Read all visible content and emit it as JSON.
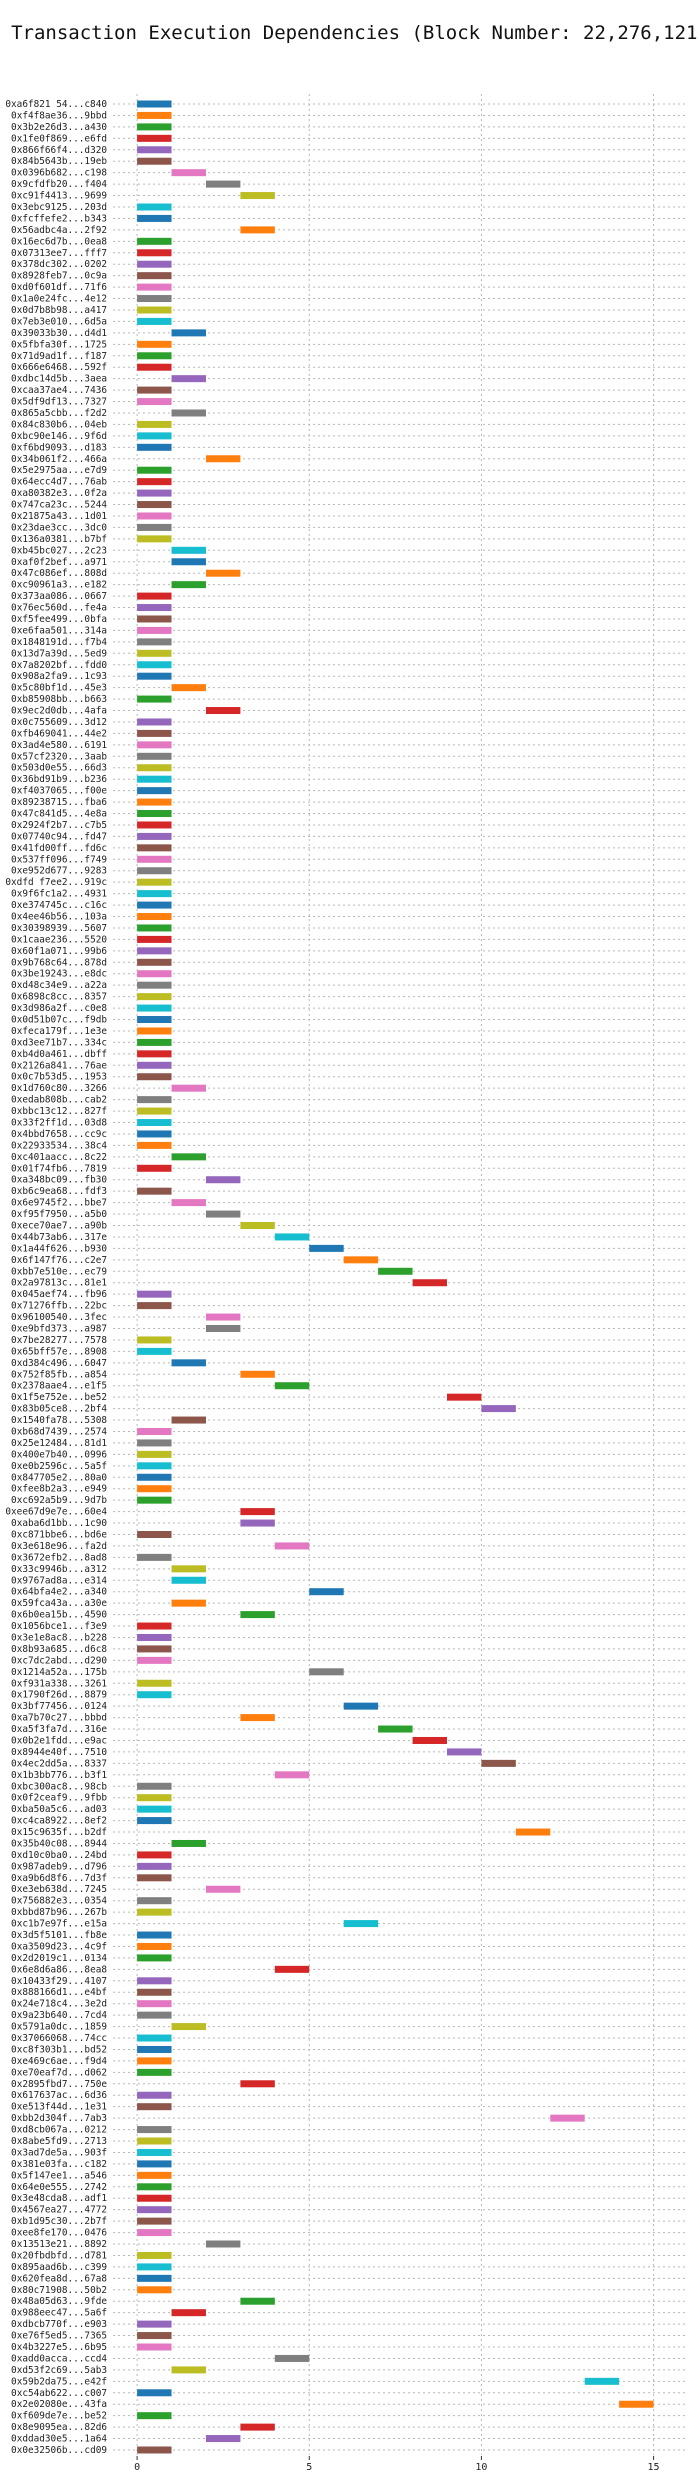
{
  "chart_data": {
    "type": "gantt",
    "title": "Transaction Execution Dependencies (Block Number: 22,276,121)",
    "xlabel": "",
    "ylabel": "",
    "xlim": [
      -0.7,
      16
    ],
    "grid": true,
    "xticks": [
      0,
      5,
      10,
      15
    ],
    "palette": [
      "#1f77b4",
      "#ff7f0e",
      "#2ca02c",
      "#d62728",
      "#9467bd",
      "#8c564b",
      "#e377c2",
      "#7f7f7f",
      "#bcbd22",
      "#17becf"
    ],
    "transactions": [
      {
        "tx": "0xa6f821 54...c840",
        "start": 0,
        "dur": 1
      },
      {
        "tx": "0xf4f8ae36...9bbd",
        "start": 0,
        "dur": 1
      },
      {
        "tx": "0x3b2e26d3...a430",
        "start": 0,
        "dur": 1
      },
      {
        "tx": "0x1fe0f869...e6fd",
        "start": 0,
        "dur": 1
      },
      {
        "tx": "0x866f66f4...d320",
        "start": 0,
        "dur": 1
      },
      {
        "tx": "0x84b5643b...19eb",
        "start": 0,
        "dur": 1
      },
      {
        "tx": "0x0396b682...c198",
        "start": 1,
        "dur": 1
      },
      {
        "tx": "0x9cfdfb20...f404",
        "start": 2,
        "dur": 1
      },
      {
        "tx": "0xc91f4413...9699",
        "start": 3,
        "dur": 1
      },
      {
        "tx": "0x3ebc9125...203d",
        "start": 0,
        "dur": 1
      },
      {
        "tx": "0xfcffefe2...b343",
        "start": 0,
        "dur": 1
      },
      {
        "tx": "0x56adbc4a...2f92",
        "start": 3,
        "dur": 1
      },
      {
        "tx": "0x16ec6d7b...0ea8",
        "start": 0,
        "dur": 1
      },
      {
        "tx": "0x07313ee7...fff7",
        "start": 0,
        "dur": 1
      },
      {
        "tx": "0x378dc302...0202",
        "start": 0,
        "dur": 1
      },
      {
        "tx": "0x8928feb7...0c9a",
        "start": 0,
        "dur": 1
      },
      {
        "tx": "0xd0f601df...71f6",
        "start": 0,
        "dur": 1
      },
      {
        "tx": "0x1a0e24fc...4e12",
        "start": 0,
        "dur": 1
      },
      {
        "tx": "0x0d7b8b98...a417",
        "start": 0,
        "dur": 1
      },
      {
        "tx": "0x7eb3e010...6d5a",
        "start": 0,
        "dur": 1
      },
      {
        "tx": "0x39033b30...d4d1",
        "start": 1,
        "dur": 1
      },
      {
        "tx": "0x5fbfa30f...1725",
        "start": 0,
        "dur": 1
      },
      {
        "tx": "0x71d9ad1f...f187",
        "start": 0,
        "dur": 1
      },
      {
        "tx": "0x666e6468...592f",
        "start": 0,
        "dur": 1
      },
      {
        "tx": "0xdbc14d5b...3aea",
        "start": 1,
        "dur": 1
      },
      {
        "tx": "0xcaa37ae4...7436",
        "start": 0,
        "dur": 1
      },
      {
        "tx": "0x5df9df13...7327",
        "start": 0,
        "dur": 1
      },
      {
        "tx": "0x865a5cbb...f2d2",
        "start": 1,
        "dur": 1
      },
      {
        "tx": "0x84c830b6...04eb",
        "start": 0,
        "dur": 1
      },
      {
        "tx": "0xbc90e146...9f6d",
        "start": 0,
        "dur": 1
      },
      {
        "tx": "0xf6bd9093...d183",
        "start": 0,
        "dur": 1
      },
      {
        "tx": "0x34b061f2...466a",
        "start": 2,
        "dur": 1
      },
      {
        "tx": "0x5e2975aa...e7d9",
        "start": 0,
        "dur": 1
      },
      {
        "tx": "0x64ecc4d7...76ab",
        "start": 0,
        "dur": 1
      },
      {
        "tx": "0xa80382e3...0f2a",
        "start": 0,
        "dur": 1
      },
      {
        "tx": "0x747ca23c...5244",
        "start": 0,
        "dur": 1
      },
      {
        "tx": "0x21875a43...1d01",
        "start": 0,
        "dur": 1
      },
      {
        "tx": "0x23dae3cc...3dc0",
        "start": 0,
        "dur": 1
      },
      {
        "tx": "0x136a0381...b7bf",
        "start": 0,
        "dur": 1
      },
      {
        "tx": "0xb45bc027...2c23",
        "start": 1,
        "dur": 1
      },
      {
        "tx": "0xaf0f2bef...a971",
        "start": 1,
        "dur": 1
      },
      {
        "tx": "0x47c086ef...808d",
        "start": 2,
        "dur": 1
      },
      {
        "tx": "0xc90961a3...e182",
        "start": 1,
        "dur": 1
      },
      {
        "tx": "0x373aa086...0667",
        "start": 0,
        "dur": 1
      },
      {
        "tx": "0x76ec560d...fe4a",
        "start": 0,
        "dur": 1
      },
      {
        "tx": "0xf5fee499...0bfa",
        "start": 0,
        "dur": 1
      },
      {
        "tx": "0xe6faa501...314a",
        "start": 0,
        "dur": 1
      },
      {
        "tx": "0x1848191d...f7b4",
        "start": 0,
        "dur": 1
      },
      {
        "tx": "0x13d7a39d...5ed9",
        "start": 0,
        "dur": 1
      },
      {
        "tx": "0x7a8202bf...fdd0",
        "start": 0,
        "dur": 1
      },
      {
        "tx": "0x908a2fa9...1c93",
        "start": 0,
        "dur": 1
      },
      {
        "tx": "0x5c80bf1d...45e3",
        "start": 1,
        "dur": 1
      },
      {
        "tx": "0xb85908bb...b663",
        "start": 0,
        "dur": 1
      },
      {
        "tx": "0x9ec2d0db...4afa",
        "start": 2,
        "dur": 1
      },
      {
        "tx": "0x0c755609...3d12",
        "start": 0,
        "dur": 1
      },
      {
        "tx": "0xfb469041...44e2",
        "start": 0,
        "dur": 1
      },
      {
        "tx": "0x3ad4e580...6191",
        "start": 0,
        "dur": 1
      },
      {
        "tx": "0x57cf2320...3aab",
        "start": 0,
        "dur": 1
      },
      {
        "tx": "0x503d0e55...66d3",
        "start": 0,
        "dur": 1
      },
      {
        "tx": "0x36bd91b9...b236",
        "start": 0,
        "dur": 1
      },
      {
        "tx": "0xf4037065...f00e",
        "start": 0,
        "dur": 1
      },
      {
        "tx": "0x89238715...fba6",
        "start": 0,
        "dur": 1
      },
      {
        "tx": "0x47c841d5...4e8a",
        "start": 0,
        "dur": 1
      },
      {
        "tx": "0x2924f2b7...c7b5",
        "start": 0,
        "dur": 1
      },
      {
        "tx": "0x07740c94...fd47",
        "start": 0,
        "dur": 1
      },
      {
        "tx": "0x41fd00ff...fd6c",
        "start": 0,
        "dur": 1
      },
      {
        "tx": "0x537ff096...f749",
        "start": 0,
        "dur": 1
      },
      {
        "tx": "0xe952d677...9283",
        "start": 0,
        "dur": 1
      },
      {
        "tx": "0xdfd f7ee2...919c",
        "start": 0,
        "dur": 1
      },
      {
        "tx": "0x9f6fc1a2...4931",
        "start": 0,
        "dur": 1
      },
      {
        "tx": "0xe374745c...c16c",
        "start": 0,
        "dur": 1
      },
      {
        "tx": "0x4ee46b56...103a",
        "start": 0,
        "dur": 1
      },
      {
        "tx": "0x30398939...5607",
        "start": 0,
        "dur": 1
      },
      {
        "tx": "0x1caae236...5520",
        "start": 0,
        "dur": 1
      },
      {
        "tx": "0x60f1a071...99b6",
        "start": 0,
        "dur": 1
      },
      {
        "tx": "0x9b768c64...878d",
        "start": 0,
        "dur": 1
      },
      {
        "tx": "0x3be19243...e8dc",
        "start": 0,
        "dur": 1
      },
      {
        "tx": "0xd48c34e9...a22a",
        "start": 0,
        "dur": 1
      },
      {
        "tx": "0x6898c8cc...8357",
        "start": 0,
        "dur": 1
      },
      {
        "tx": "0x3d986a2f...c0e8",
        "start": 0,
        "dur": 1
      },
      {
        "tx": "0x0d51b07c...f9db",
        "start": 0,
        "dur": 1
      },
      {
        "tx": "0xfeca179f...1e3e",
        "start": 0,
        "dur": 1
      },
      {
        "tx": "0xd3ee71b7...334c",
        "start": 0,
        "dur": 1
      },
      {
        "tx": "0xb4d0a461...dbff",
        "start": 0,
        "dur": 1
      },
      {
        "tx": "0x2126a841...76ae",
        "start": 0,
        "dur": 1
      },
      {
        "tx": "0x0c7b53d5...1953",
        "start": 0,
        "dur": 1
      },
      {
        "tx": "0x1d760c80...3266",
        "start": 1,
        "dur": 1
      },
      {
        "tx": "0xedab808b...cab2",
        "start": 0,
        "dur": 1
      },
      {
        "tx": "0xbbc13c12...827f",
        "start": 0,
        "dur": 1
      },
      {
        "tx": "0x33f2ff1d...03d8",
        "start": 0,
        "dur": 1
      },
      {
        "tx": "0x4bbd7658...cc9c",
        "start": 0,
        "dur": 1
      },
      {
        "tx": "0x22933534...38c4",
        "start": 0,
        "dur": 1
      },
      {
        "tx": "0xc401aacc...8c22",
        "start": 1,
        "dur": 1
      },
      {
        "tx": "0x01f74fb6...7819",
        "start": 0,
        "dur": 1
      },
      {
        "tx": "0xa348bc09...fb30",
        "start": 2,
        "dur": 1
      },
      {
        "tx": "0xb6c9ea68...fdf3",
        "start": 0,
        "dur": 1
      },
      {
        "tx": "0x6e9745f2...bbe7",
        "start": 1,
        "dur": 1
      },
      {
        "tx": "0xf95f7950...a5b0",
        "start": 2,
        "dur": 1
      },
      {
        "tx": "0xece70ae7...a90b",
        "start": 3,
        "dur": 1
      },
      {
        "tx": "0x44b73ab6...317e",
        "start": 4,
        "dur": 1
      },
      {
        "tx": "0x1a44f626...b930",
        "start": 5,
        "dur": 1
      },
      {
        "tx": "0x6f147f76...c2e7",
        "start": 6,
        "dur": 1
      },
      {
        "tx": "0xbb7e510e...ec79",
        "start": 7,
        "dur": 1
      },
      {
        "tx": "0x2a97813c...81e1",
        "start": 8,
        "dur": 1
      },
      {
        "tx": "0x045aef74...fb96",
        "start": 0,
        "dur": 1
      },
      {
        "tx": "0x71276ffb...22bc",
        "start": 0,
        "dur": 1
      },
      {
        "tx": "0x96100540...3fec",
        "start": 2,
        "dur": 1
      },
      {
        "tx": "0xe9bfd373...a987",
        "start": 2,
        "dur": 1
      },
      {
        "tx": "0x7be28277...7578",
        "start": 0,
        "dur": 1
      },
      {
        "tx": "0x65bff57e...8908",
        "start": 0,
        "dur": 1
      },
      {
        "tx": "0xd384c496...6047",
        "start": 1,
        "dur": 1
      },
      {
        "tx": "0x752f85fb...a854",
        "start": 3,
        "dur": 1
      },
      {
        "tx": "0x2378aae4...e1f5",
        "start": 4,
        "dur": 1
      },
      {
        "tx": "0x1f5e752e...be52",
        "start": 9,
        "dur": 1
      },
      {
        "tx": "0x83b05ce8...2bf4",
        "start": 10,
        "dur": 1
      },
      {
        "tx": "0x1540fa78...5308",
        "start": 1,
        "dur": 1
      },
      {
        "tx": "0xb68d7439...2574",
        "start": 0,
        "dur": 1
      },
      {
        "tx": "0x25e12484...81d1",
        "start": 0,
        "dur": 1
      },
      {
        "tx": "0x400e7b40...0996",
        "start": 0,
        "dur": 1
      },
      {
        "tx": "0xe0b2596c...5a5f",
        "start": 0,
        "dur": 1
      },
      {
        "tx": "0x847705e2...80a0",
        "start": 0,
        "dur": 1
      },
      {
        "tx": "0xfee8b2a3...e949",
        "start": 0,
        "dur": 1
      },
      {
        "tx": "0xc692a5b9...9d7b",
        "start": 0,
        "dur": 1
      },
      {
        "tx": "0xee67d9e7e...60e4",
        "start": 3,
        "dur": 1
      },
      {
        "tx": "0xaba6d1bb...1c90",
        "start": 3,
        "dur": 1
      },
      {
        "tx": "0xc871bbe6...bd6e",
        "start": 0,
        "dur": 1
      },
      {
        "tx": "0x3e618e96...fa2d",
        "start": 4,
        "dur": 1
      },
      {
        "tx": "0x3672efb2...8ad8",
        "start": 0,
        "dur": 1
      },
      {
        "tx": "0x33c9946b...a312",
        "start": 1,
        "dur": 1
      },
      {
        "tx": "0x9767ad8a...e314",
        "start": 1,
        "dur": 1
      },
      {
        "tx": "0x64bfa4e2...a340",
        "start": 5,
        "dur": 1
      },
      {
        "tx": "0x59fca43a...a30e",
        "start": 1,
        "dur": 1
      },
      {
        "tx": "0x6b0ea15b...4590",
        "start": 3,
        "dur": 1
      },
      {
        "tx": "0x1056bce1...f3e9",
        "start": 0,
        "dur": 1
      },
      {
        "tx": "0x3e1e8ac8...b228",
        "start": 0,
        "dur": 1
      },
      {
        "tx": "0x8b93a685...d6c8",
        "start": 0,
        "dur": 1
      },
      {
        "tx": "0xc7dc2abd...d290",
        "start": 0,
        "dur": 1
      },
      {
        "tx": "0x1214a52a...175b",
        "start": 5,
        "dur": 1
      },
      {
        "tx": "0xf931a338...3261",
        "start": 0,
        "dur": 1
      },
      {
        "tx": "0x1790f26d...8879",
        "start": 0,
        "dur": 1
      },
      {
        "tx": "0x3bf77456...0124",
        "start": 6,
        "dur": 1
      },
      {
        "tx": "0xa7b70c27...bbbd",
        "start": 3,
        "dur": 1
      },
      {
        "tx": "0xa5f3fa7d...316e",
        "start": 7,
        "dur": 1
      },
      {
        "tx": "0x0b2e1fdd...e9ac",
        "start": 8,
        "dur": 1
      },
      {
        "tx": "0x8944e40f...7510",
        "start": 9,
        "dur": 1
      },
      {
        "tx": "0x4ec2dd5a...8337",
        "start": 10,
        "dur": 1
      },
      {
        "tx": "0x1b3bb776...b3f1",
        "start": 4,
        "dur": 1
      },
      {
        "tx": "0xbc300ac8...98cb",
        "start": 0,
        "dur": 1
      },
      {
        "tx": "0x0f2ceaf9...9fbb",
        "start": 0,
        "dur": 1
      },
      {
        "tx": "0xba50a5c6...ad03",
        "start": 0,
        "dur": 1
      },
      {
        "tx": "0xc4ca8922...8ef2",
        "start": 0,
        "dur": 1
      },
      {
        "tx": "0x15c9635f...b2df",
        "start": 11,
        "dur": 1
      },
      {
        "tx": "0x35b40c08...8944",
        "start": 1,
        "dur": 1
      },
      {
        "tx": "0xd10c0ba0...24bd",
        "start": 0,
        "dur": 1
      },
      {
        "tx": "0x987adeb9...d796",
        "start": 0,
        "dur": 1
      },
      {
        "tx": "0xa9b6d8f6...7d3f",
        "start": 0,
        "dur": 1
      },
      {
        "tx": "0xe3eb638d...7245",
        "start": 2,
        "dur": 1
      },
      {
        "tx": "0x756882e3...0354",
        "start": 0,
        "dur": 1
      },
      {
        "tx": "0xbbd87b96...267b",
        "start": 0,
        "dur": 1
      },
      {
        "tx": "0xc1b7e97f...e15a",
        "start": 6,
        "dur": 1
      },
      {
        "tx": "0x3d5f5101...fb8e",
        "start": 0,
        "dur": 1
      },
      {
        "tx": "0xa3509d23...4c9f",
        "start": 0,
        "dur": 1
      },
      {
        "tx": "0x2d2019c1...0134",
        "start": 0,
        "dur": 1
      },
      {
        "tx": "0x6e8d6a86...8ea8",
        "start": 4,
        "dur": 1
      },
      {
        "tx": "0x10433f29...4107",
        "start": 0,
        "dur": 1
      },
      {
        "tx": "0x888166d1...e4bf",
        "start": 0,
        "dur": 1
      },
      {
        "tx": "0x24e718c4...3e2d",
        "start": 0,
        "dur": 1
      },
      {
        "tx": "0x9a23b640...7cd4",
        "start": 0,
        "dur": 1
      },
      {
        "tx": "0x5791a0dc...1859",
        "start": 1,
        "dur": 1
      },
      {
        "tx": "0x37066068...74cc",
        "start": 0,
        "dur": 1
      },
      {
        "tx": "0xc8f303b1...bd52",
        "start": 0,
        "dur": 1
      },
      {
        "tx": "0xe469c6ae...f9d4",
        "start": 0,
        "dur": 1
      },
      {
        "tx": "0xe70eaf7d...d062",
        "start": 0,
        "dur": 1
      },
      {
        "tx": "0x2895fbd7...750e",
        "start": 3,
        "dur": 1
      },
      {
        "tx": "0x617637ac...6d36",
        "start": 0,
        "dur": 1
      },
      {
        "tx": "0xe513f44d...1e31",
        "start": 0,
        "dur": 1
      },
      {
        "tx": "0xbb2d304f...7ab3",
        "start": 12,
        "dur": 1
      },
      {
        "tx": "0xd8cb067a...0212",
        "start": 0,
        "dur": 1
      },
      {
        "tx": "0x8abe5fd9...2713",
        "start": 0,
        "dur": 1
      },
      {
        "tx": "0x3ad7de5a...903f",
        "start": 0,
        "dur": 1
      },
      {
        "tx": "0x381e03fa...c182",
        "start": 0,
        "dur": 1
      },
      {
        "tx": "0x5f147ee1...a546",
        "start": 0,
        "dur": 1
      },
      {
        "tx": "0x64e0e555...2742",
        "start": 0,
        "dur": 1
      },
      {
        "tx": "0x3e48cda8...adf1",
        "start": 0,
        "dur": 1
      },
      {
        "tx": "0x4567ea27...4772",
        "start": 0,
        "dur": 1
      },
      {
        "tx": "0xb1d95c30...2b7f",
        "start": 0,
        "dur": 1
      },
      {
        "tx": "0xee8fe170...0476",
        "start": 0,
        "dur": 1
      },
      {
        "tx": "0x13513e21...8892",
        "start": 2,
        "dur": 1
      },
      {
        "tx": "0x20fbdbfd...d781",
        "start": 0,
        "dur": 1
      },
      {
        "tx": "0x895aad6b...c399",
        "start": 0,
        "dur": 1
      },
      {
        "tx": "0x620fea8d...67a8",
        "start": 0,
        "dur": 1
      },
      {
        "tx": "0x80c71908...50b2",
        "start": 0,
        "dur": 1
      },
      {
        "tx": "0x48a05d63...9fde",
        "start": 3,
        "dur": 1
      },
      {
        "tx": "0x988eec47...5a6f",
        "start": 1,
        "dur": 1
      },
      {
        "tx": "0xdbcb770f...e903",
        "start": 0,
        "dur": 1
      },
      {
        "tx": "0xe76f5ed5...7365",
        "start": 0,
        "dur": 1
      },
      {
        "tx": "0x4b3227e5...6b95",
        "start": 0,
        "dur": 1
      },
      {
        "tx": "0xadd0acca...ccd4",
        "start": 4,
        "dur": 1
      },
      {
        "tx": "0xd53f2c69...5ab3",
        "start": 1,
        "dur": 1
      },
      {
        "tx": "0x59b2da75...e42f",
        "start": 13,
        "dur": 1
      },
      {
        "tx": "0xc54ab622...c007",
        "start": 0,
        "dur": 1
      },
      {
        "tx": "0x2e02080e...43fa",
        "start": 14,
        "dur": 1
      },
      {
        "tx": "0xf609de7e...be52",
        "start": 0,
        "dur": 1
      },
      {
        "tx": "0x8e9095ea...82d6",
        "start": 3,
        "dur": 1
      },
      {
        "tx": "0xddad30e5...1a64",
        "start": 2,
        "dur": 1
      },
      {
        "tx": "0x0e32506b...cd09",
        "start": 0,
        "dur": 1
      }
    ]
  }
}
